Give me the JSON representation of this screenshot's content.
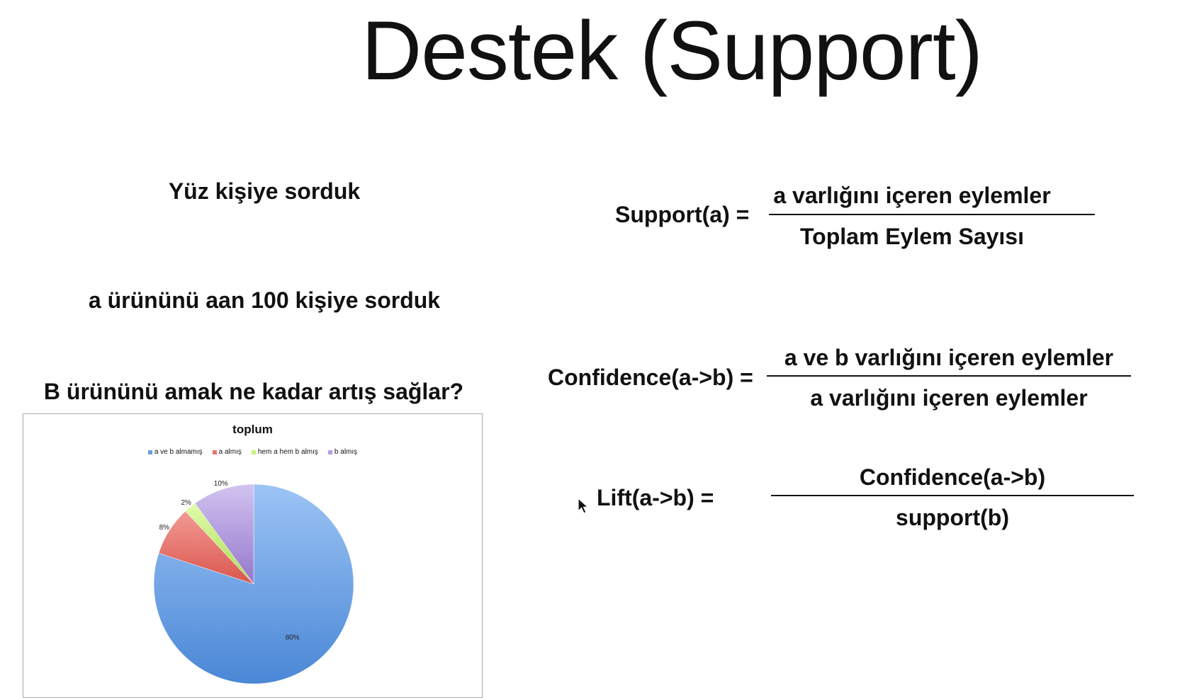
{
  "slide": {
    "title": "Destek (Support)",
    "left_texts": {
      "line1": "Yüz kişiye sorduk",
      "line2": "a ürününü aan 100  kişiye sorduk",
      "line3": "B ürününü amak ne kadar artış sağlar?"
    },
    "formulas": {
      "support": {
        "label": "Support(a) =",
        "numerator": "a varlığını içeren eylemler",
        "denominator": "Toplam Eylem Sayısı"
      },
      "confidence": {
        "label": "Confidence(a->b) =",
        "numerator": "a ve b varlığını içeren eylemler",
        "denominator": "a varlığını içeren eylemler"
      },
      "lift": {
        "label": "Lift(a->b) =",
        "numerator": "Confidence(a->b)",
        "denominator": "support(b)"
      }
    },
    "cursor_icon": "mouse-pointer-icon"
  },
  "chart_data": {
    "type": "pie",
    "title": "toplum",
    "slices": [
      {
        "name": "a ve b almamış",
        "value": 80,
        "label": "80%",
        "color": "#6a9fe0"
      },
      {
        "name": "a almış",
        "value": 8,
        "label": "8%",
        "color": "#e8746c"
      },
      {
        "name": "hem a hem b almış",
        "value": 2,
        "label": "2%",
        "color": "#c9f07a"
      },
      {
        "name": "b almış",
        "value": 10,
        "label": "10%",
        "color": "#b69ee0"
      }
    ],
    "legend_position": "top"
  }
}
